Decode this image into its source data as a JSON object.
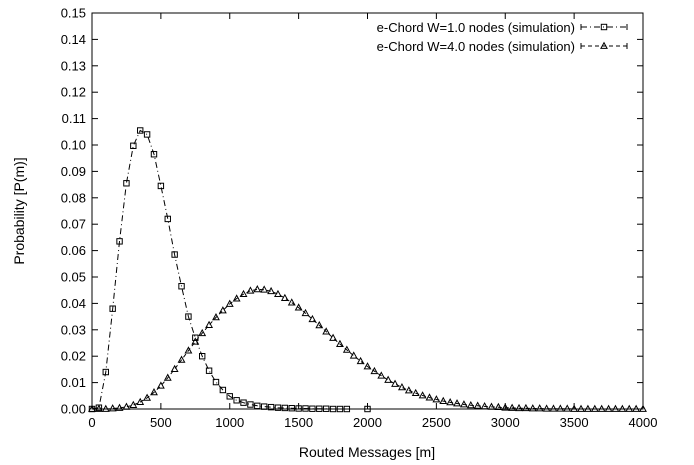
{
  "chart_data": {
    "type": "line",
    "title": "",
    "xlabel": "Routed Messages [m]",
    "ylabel": "Probability [P(m)]",
    "xlim": [
      0,
      4000
    ],
    "ylim": [
      0,
      0.15
    ],
    "x_ticks": [
      "0",
      "500",
      "1000",
      "1500",
      "2000",
      "2500",
      "3000",
      "3500",
      "4000"
    ],
    "y_ticks": [
      "0.00",
      "0.01",
      "0.02",
      "0.03",
      "0.04",
      "0.05",
      "0.06",
      "0.07",
      "0.08",
      "0.09",
      "0.10",
      "0.11",
      "0.12",
      "0.13",
      "0.14",
      "0.15"
    ],
    "grid": false,
    "legend_position": "top-right",
    "series": [
      {
        "name": "e-Chord W=1.0 nodes (simulation)",
        "marker": "square",
        "line_style": "dash-dot",
        "x": [
          0,
          50,
          100,
          150,
          200,
          250,
          300,
          350,
          400,
          450,
          500,
          550,
          600,
          650,
          700,
          750,
          800,
          850,
          900,
          950,
          1000,
          1050,
          1100,
          1150,
          1200,
          1250,
          1300,
          1350,
          1400,
          1450,
          1500,
          1550,
          1600,
          1650,
          1700,
          1750,
          1800,
          1850,
          2000
        ],
        "y": [
          0.0,
          0.0005,
          0.014,
          0.038,
          0.0635,
          0.0855,
          0.0997,
          0.1055,
          0.104,
          0.0965,
          0.0845,
          0.072,
          0.0585,
          0.0465,
          0.035,
          0.027,
          0.02,
          0.0145,
          0.0102,
          0.0072,
          0.0048,
          0.0033,
          0.0024,
          0.0017,
          0.0012,
          0.0009,
          0.0007,
          0.0005,
          0.0004,
          0.0003,
          0.0002,
          0.0002,
          0.0001,
          0.0001,
          0.0001,
          0.0,
          0.0,
          0.0,
          0.0
        ]
      },
      {
        "name": "e-Chord W=4.0 nodes (simulation)",
        "marker": "triangle",
        "line_style": "dashed",
        "x": [
          0,
          50,
          100,
          150,
          200,
          250,
          300,
          350,
          400,
          450,
          500,
          550,
          600,
          650,
          700,
          750,
          800,
          850,
          900,
          950,
          1000,
          1050,
          1100,
          1150,
          1200,
          1250,
          1300,
          1350,
          1400,
          1450,
          1500,
          1550,
          1600,
          1650,
          1700,
          1750,
          1800,
          1850,
          1900,
          1950,
          2000,
          2050,
          2100,
          2150,
          2200,
          2250,
          2300,
          2350,
          2400,
          2450,
          2500,
          2550,
          2600,
          2650,
          2700,
          2750,
          2800,
          2850,
          2900,
          2950,
          3000,
          3050,
          3100,
          3150,
          3200,
          3250,
          3300,
          3350,
          3400,
          3450,
          3500,
          3550,
          3600,
          3650,
          3700,
          3750,
          3800,
          3850,
          3900,
          3950,
          4000
        ],
        "y": [
          0.0,
          0.0,
          0.0,
          0.0002,
          0.0004,
          0.0008,
          0.0015,
          0.0026,
          0.0042,
          0.0063,
          0.0088,
          0.0118,
          0.0151,
          0.0186,
          0.0221,
          0.0255,
          0.0287,
          0.0318,
          0.0347,
          0.0373,
          0.0398,
          0.0418,
          0.0435,
          0.0448,
          0.0453,
          0.0452,
          0.0446,
          0.0435,
          0.042,
          0.0403,
          0.0384,
          0.0363,
          0.034,
          0.0317,
          0.0293,
          0.0269,
          0.0246,
          0.0224,
          0.0202,
          0.0181,
          0.0161,
          0.0143,
          0.0126,
          0.011,
          0.0095,
          0.0082,
          0.007,
          0.006,
          0.0051,
          0.0043,
          0.0036,
          0.003,
          0.0025,
          0.0021,
          0.0017,
          0.0014,
          0.0012,
          0.001,
          0.0008,
          0.0007,
          0.0005,
          0.0004,
          0.0003,
          0.0003,
          0.0002,
          0.0002,
          0.0001,
          0.0001,
          0.0001,
          0.0001,
          0.0,
          0.0,
          0.0,
          0.0,
          0.0,
          0.0,
          0.0,
          0.0,
          0.0,
          0.0,
          0.0
        ]
      }
    ]
  }
}
